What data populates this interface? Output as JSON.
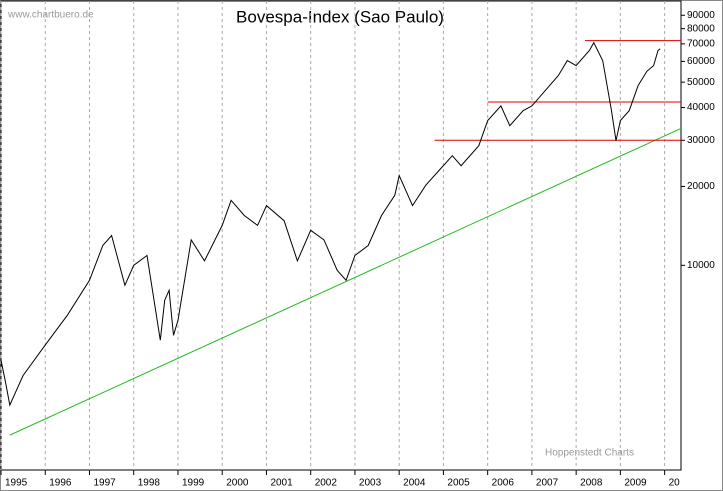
{
  "chart_data": {
    "type": "line",
    "title": "Bovespa-Index (Sao Paulo)",
    "source": "www.chartbuero.de",
    "credit": "Hoppenstedt Charts",
    "x": [
      1995.0,
      1995.1,
      1995.2,
      1995.5,
      1996.0,
      1996.5,
      1997.0,
      1997.3,
      1997.5,
      1997.8,
      1998.0,
      1998.3,
      1998.6,
      1998.7,
      1998.8,
      1998.9,
      1999.0,
      1999.3,
      1999.6,
      2000.0,
      2000.2,
      2000.5,
      2000.8,
      2001.0,
      2001.4,
      2001.7,
      2002.0,
      2002.3,
      2002.6,
      2002.8,
      2003.0,
      2003.3,
      2003.6,
      2003.9,
      2004.0,
      2004.3,
      2004.6,
      2004.9,
      2005.2,
      2005.4,
      2005.8,
      2006.0,
      2006.3,
      2006.5,
      2006.8,
      2007.0,
      2007.4,
      2007.6,
      2007.8,
      2008.0,
      2008.3,
      2008.4,
      2008.6,
      2008.8,
      2008.9,
      2009.0,
      2009.2,
      2009.4,
      2009.6,
      2009.75,
      2009.85,
      2009.9
    ],
    "series": [
      {
        "name": "Bovespa",
        "color": "#000000",
        "values": [
          4350,
          3600,
          2930,
          3800,
          4960,
          6450,
          8770,
          11900,
          13000,
          8390,
          10000,
          10900,
          5180,
          7360,
          8030,
          5410,
          6170,
          12500,
          10400,
          14200,
          17700,
          15500,
          14200,
          16900,
          14800,
          10400,
          13600,
          12500,
          9570,
          8770,
          10900,
          11900,
          15500,
          18500,
          22000,
          16900,
          20200,
          23000,
          26200,
          24000,
          28600,
          35700,
          40600,
          34100,
          38900,
          40600,
          48500,
          53000,
          60400,
          57800,
          66000,
          70700,
          60400,
          38900,
          29900,
          35700,
          38900,
          48500,
          55000,
          57800,
          66000,
          67000
        ]
      }
    ],
    "trend": {
      "color": "#22bb22",
      "x": [
        1995.2,
        2010.37
      ],
      "values": [
        2250,
        33300
      ]
    },
    "levels": [
      {
        "color": "#dd0000",
        "value": 30000,
        "x": [
          2004.8,
          2010.37
        ]
      },
      {
        "color": "#dd0000",
        "value": 42000,
        "x": [
          2006.0,
          2010.37
        ]
      },
      {
        "color": "#dd0000",
        "value": 72000,
        "x": [
          2008.2,
          2010.37
        ]
      }
    ],
    "xlim": [
      1995,
      2010.37
    ],
    "xticks": [
      1995,
      1996,
      1997,
      1998,
      1999,
      2000,
      2001,
      2002,
      2003,
      2004,
      2005,
      2006,
      2007,
      2008,
      2009,
      {
        "value": 2010,
        "label": "20"
      }
    ],
    "ylim": [
      1656,
      102000
    ],
    "log_y": true,
    "yticks": [
      10000,
      20000,
      30000,
      40000,
      50000,
      60000,
      70000,
      80000,
      90000
    ],
    "grid_x": true
  }
}
